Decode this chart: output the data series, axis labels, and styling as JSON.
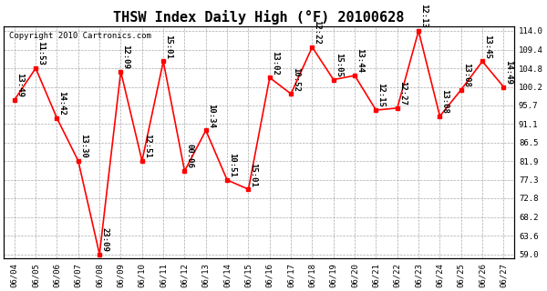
{
  "title": "THSW Index Daily High (°F) 20100628",
  "copyright": "Copyright 2010 Cartronics.com",
  "dates": [
    "06/04",
    "06/05",
    "06/06",
    "06/07",
    "06/08",
    "06/09",
    "06/10",
    "06/11",
    "06/12",
    "06/13",
    "06/14",
    "06/15",
    "06/16",
    "06/17",
    "06/18",
    "06/19",
    "06/20",
    "06/21",
    "06/22",
    "06/23",
    "06/24",
    "06/25",
    "06/26",
    "06/27"
  ],
  "values": [
    97.0,
    104.8,
    92.5,
    82.0,
    59.0,
    104.0,
    82.0,
    106.5,
    79.5,
    89.5,
    77.3,
    75.0,
    102.5,
    98.5,
    110.0,
    102.0,
    103.0,
    94.5,
    95.0,
    114.0,
    93.0,
    99.5,
    106.5,
    100.2
  ],
  "times": [
    "13:49",
    "11:53",
    "14:42",
    "13:30",
    "23:09",
    "12:09",
    "12:51",
    "15:01",
    "00:06",
    "10:34",
    "10:51",
    "15:01",
    "13:02",
    "10:52",
    "12:22",
    "15:05",
    "13:44",
    "12:15",
    "12:27",
    "12:13",
    "13:08",
    "13:08",
    "13:45",
    "14:49"
  ],
  "ylim": [
    59.0,
    114.0
  ],
  "yticks": [
    59.0,
    63.6,
    68.2,
    72.8,
    77.3,
    81.9,
    86.5,
    91.1,
    95.7,
    100.2,
    104.8,
    109.4,
    114.0
  ],
  "line_color": "red",
  "marker_color": "red",
  "bg_color": "#ffffff",
  "grid_color": "#aaaaaa",
  "title_fontsize": 11,
  "label_fontsize": 6.5,
  "annotation_fontsize": 6.5,
  "copyright_fontsize": 6.5
}
